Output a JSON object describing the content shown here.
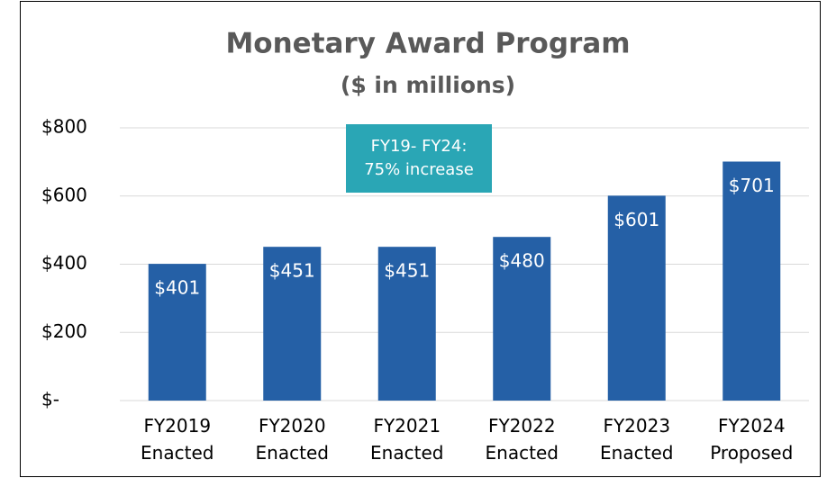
{
  "chart_data": {
    "type": "bar",
    "title": "Monetary Award Program",
    "subtitle": "($ in millions)",
    "annotation": [
      "FY19- FY24:",
      "75% increase"
    ],
    "categories": [
      "FY2019 Enacted",
      "FY2020 Enacted",
      "FY2021 Enacted",
      "FY2022 Enacted",
      "FY2023 Enacted",
      "FY2024 Proposed"
    ],
    "values": [
      401,
      451,
      451,
      480,
      601,
      701
    ],
    "value_labels": [
      "$401",
      "$451",
      "$451",
      "$480",
      "$601",
      "$701"
    ],
    "color": "#2560a6",
    "ylim": [
      0,
      800
    ],
    "yticks": [
      {
        "value": 0,
        "label": "$-"
      },
      {
        "value": 200,
        "label": "$200"
      },
      {
        "value": 400,
        "label": "$400"
      },
      {
        "value": 600,
        "label": "$600"
      },
      {
        "value": 800,
        "label": "$800"
      }
    ],
    "grid": true
  }
}
